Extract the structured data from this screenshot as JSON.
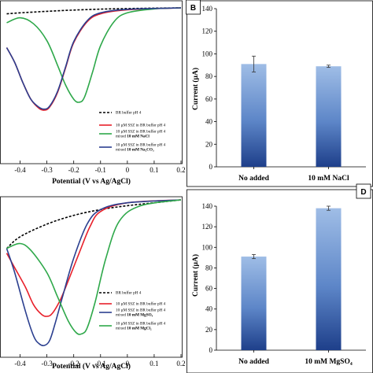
{
  "panels": {
    "A": {
      "xlabel": "Potential (V vs Ag/AgCl)",
      "xticks": [
        "-0.4",
        "-0.3",
        "-0.2",
        "-0.1",
        "0",
        "0.1",
        "0.2"
      ],
      "legend": [
        {
          "lines": [
            "BR buffer pH 4"
          ],
          "bold": "",
          "color": "#000000",
          "dashed": true
        },
        {
          "lines": [
            "10 µM SSZ in BR buffer pH 4"
          ],
          "bold": "",
          "color": "#e8202a",
          "dashed": false
        },
        {
          "lines": [
            "10 µM SSZ in BR buffer pH 4",
            "mixed"
          ],
          "bold": "10 mM NaCl",
          "color": "#2ea84a",
          "dashed": false
        },
        {
          "lines": [
            "10 µM SSZ in BR buffer pH 4",
            "mixed"
          ],
          "bold": "10 mM Na₂CO₃",
          "color": "#2b3f8f",
          "dashed": false
        }
      ]
    },
    "B": {
      "label": "B",
      "ylabel": "Current (µA)",
      "yticks": [
        "0",
        "20",
        "40",
        "60",
        "80",
        "100",
        "120",
        "140"
      ]
    },
    "C": {
      "xlabel": "Potential (V vs Ag/AgCl)",
      "xticks": [
        "-0.4",
        "-0.3",
        "-0.2",
        "-0.1",
        "0",
        "0.1",
        "0.2"
      ],
      "legend": [
        {
          "lines": [
            "BR buffer pH 4"
          ],
          "bold": "",
          "color": "#000000",
          "dashed": true
        },
        {
          "lines": [
            "10 µM SSZ in BR buffer pH 4"
          ],
          "bold": "",
          "color": "#e8202a",
          "dashed": false
        },
        {
          "lines": [
            "10 µM SSZ in BR buffer pH 4",
            "mixed"
          ],
          "bold": "10 mM MgSO₄",
          "color": "#2b3f8f",
          "dashed": false
        },
        {
          "lines": [
            "10 µM SSZ in BR buffer pH 4",
            "mixed"
          ],
          "bold": "10 mM MgCl₂",
          "color": "#2ea84a",
          "dashed": false
        }
      ]
    },
    "D": {
      "label": "D",
      "ylabel": "Current (µA)",
      "yticks": [
        "0",
        "20",
        "40",
        "60",
        "80",
        "100",
        "120",
        "140"
      ]
    }
  },
  "chart_data": [
    {
      "type": "line",
      "panel": "A",
      "xlabel": "Potential (V vs Ag/AgCl)",
      "xlim": [
        -0.45,
        0.2
      ],
      "series": [
        {
          "name": "BR buffer pH 4",
          "color": "#000000",
          "x": [
            -0.45,
            -0.4,
            -0.3,
            -0.2,
            -0.1,
            0,
            0.1,
            0.2
          ],
          "y": [
            -6,
            -5,
            -3.5,
            -2.2,
            -1.3,
            -0.7,
            -0.3,
            0
          ]
        },
        {
          "name": "10 µM SSZ in BR buffer pH 4",
          "color": "#e8202a",
          "x": [
            -0.45,
            -0.42,
            -0.39,
            -0.36,
            -0.33,
            -0.31,
            -0.29,
            -0.26,
            -0.23,
            -0.2,
            -0.15,
            -0.1,
            0,
            0.2
          ],
          "y": [
            -40,
            -55,
            -75,
            -92,
            -101,
            -103,
            -100,
            -85,
            -60,
            -35,
            -14,
            -6,
            -2,
            0
          ]
        },
        {
          "name": "10 mM NaCl",
          "color": "#2ea84a",
          "x": [
            -0.45,
            -0.4,
            -0.35,
            -0.3,
            -0.26,
            -0.23,
            -0.2,
            -0.18,
            -0.16,
            -0.13,
            -0.1,
            -0.05,
            0,
            0.1,
            0.2
          ],
          "y": [
            -15,
            -10,
            -16,
            -33,
            -58,
            -78,
            -92,
            -95,
            -90,
            -65,
            -38,
            -14,
            -5,
            -1,
            0
          ]
        },
        {
          "name": "10 mM Na₂CO₃",
          "color": "#2b3f8f",
          "x": [
            -0.45,
            -0.42,
            -0.39,
            -0.36,
            -0.33,
            -0.31,
            -0.29,
            -0.26,
            -0.23,
            -0.2,
            -0.15,
            -0.1,
            0,
            0.2
          ],
          "y": [
            -40,
            -55,
            -75,
            -92,
            -100,
            -102,
            -99,
            -84,
            -59,
            -34,
            -13,
            -5,
            -1.5,
            0
          ]
        }
      ]
    },
    {
      "type": "bar",
      "panel": "B",
      "ylabel": "Current (µA)",
      "ylim": [
        0,
        140
      ],
      "categories": [
        "No added",
        "10 mM NaCl"
      ],
      "values": [
        91,
        89
      ],
      "errors": [
        7,
        1
      ]
    },
    {
      "type": "line",
      "panel": "C",
      "xlabel": "Potential (V vs Ag/AgCl)",
      "xlim": [
        -0.45,
        0.2
      ],
      "series": [
        {
          "name": "BR buffer pH 4",
          "color": "#000000",
          "x": [
            -0.45,
            -0.4,
            -0.3,
            -0.2,
            -0.1,
            0,
            0.1,
            0.2
          ],
          "y": [
            -50,
            -38,
            -25,
            -16,
            -10,
            -6,
            -3,
            0
          ]
        },
        {
          "name": "10 µM SSZ in BR buffer pH 4",
          "color": "#e8202a",
          "x": [
            -0.45,
            -0.42,
            -0.38,
            -0.35,
            -0.32,
            -0.3,
            -0.28,
            -0.25,
            -0.22,
            -0.18,
            -0.14,
            -0.1,
            0,
            0.2
          ],
          "y": [
            -55,
            -70,
            -90,
            -108,
            -118,
            -120,
            -117,
            -103,
            -83,
            -55,
            -28,
            -12,
            -3,
            0
          ]
        },
        {
          "name": "10 mM MgSO₄",
          "color": "#2b3f8f",
          "x": [
            -0.45,
            -0.42,
            -0.38,
            -0.35,
            -0.33,
            -0.31,
            -0.29,
            -0.27,
            -0.24,
            -0.2,
            -0.15,
            -0.1,
            0,
            0.2
          ],
          "y": [
            -50,
            -75,
            -115,
            -140,
            -148,
            -150,
            -145,
            -128,
            -98,
            -60,
            -25,
            -10,
            -3,
            0
          ]
        },
        {
          "name": "10 mM MgCl₂",
          "color": "#2ea84a",
          "x": [
            -0.45,
            -0.4,
            -0.36,
            -0.3,
            -0.26,
            -0.22,
            -0.19,
            -0.17,
            -0.15,
            -0.12,
            -0.08,
            -0.03,
            0.05,
            0.2
          ],
          "y": [
            -50,
            -45,
            -52,
            -75,
            -100,
            -125,
            -137,
            -138,
            -132,
            -105,
            -60,
            -22,
            -6,
            0
          ]
        }
      ]
    },
    {
      "type": "bar",
      "panel": "D",
      "ylabel": "Current (µA)",
      "ylim": [
        0,
        140
      ],
      "categories": [
        "No added",
        "10 mM MgSO₄"
      ],
      "values": [
        91,
        138
      ],
      "errors": [
        2,
        2
      ]
    }
  ]
}
